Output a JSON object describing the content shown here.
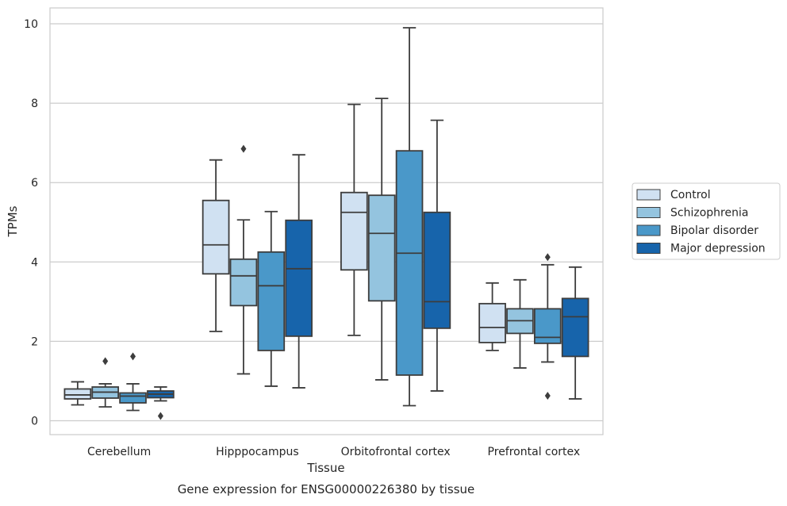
{
  "caption": "Gene expression for ENSG00000226380 by tissue",
  "chart_data": {
    "type": "box",
    "xlabel": "Tissue",
    "ylabel": "TPMs",
    "ylim": [
      -0.35,
      10.4
    ],
    "yticks": [
      0,
      2,
      4,
      6,
      8,
      10
    ],
    "grid": "horizontal",
    "legend_placement": "right",
    "categories": [
      "Cerebellum",
      "Hipppocampus",
      "Orbitofrontal cortex",
      "Prefrontal cortex"
    ],
    "series": [
      {
        "name": "Control",
        "color": "#d0e1f2",
        "boxes": [
          {
            "whislo": 0.4,
            "q1": 0.55,
            "med": 0.65,
            "q3": 0.8,
            "whishi": 0.98,
            "fliers": []
          },
          {
            "whislo": 2.25,
            "q1": 3.7,
            "med": 4.43,
            "q3": 5.55,
            "whishi": 6.57,
            "fliers": []
          },
          {
            "whislo": 2.15,
            "q1": 3.8,
            "med": 5.25,
            "q3": 5.75,
            "whishi": 7.97,
            "fliers": []
          },
          {
            "whislo": 1.77,
            "q1": 1.97,
            "med": 2.35,
            "q3": 2.95,
            "whishi": 3.47,
            "fliers": []
          }
        ]
      },
      {
        "name": "Schizophrenia",
        "color": "#94c4df",
        "boxes": [
          {
            "whislo": 0.35,
            "q1": 0.57,
            "med": 0.72,
            "q3": 0.85,
            "whishi": 0.93,
            "fliers": [
              1.5
            ]
          },
          {
            "whislo": 1.18,
            "q1": 2.9,
            "med": 3.65,
            "q3": 4.07,
            "whishi": 5.06,
            "fliers": [
              6.85
            ]
          },
          {
            "whislo": 1.03,
            "q1": 3.02,
            "med": 4.72,
            "q3": 5.68,
            "whishi": 8.12,
            "fliers": []
          },
          {
            "whislo": 1.33,
            "q1": 2.2,
            "med": 2.52,
            "q3": 2.82,
            "whishi": 3.55,
            "fliers": []
          }
        ]
      },
      {
        "name": "Bipolar disorder",
        "color": "#4a98c9",
        "boxes": [
          {
            "whislo": 0.26,
            "q1": 0.45,
            "med": 0.62,
            "q3": 0.7,
            "whishi": 0.93,
            "fliers": [
              1.62
            ]
          },
          {
            "whislo": 0.87,
            "q1": 1.77,
            "med": 3.4,
            "q3": 4.25,
            "whishi": 5.27,
            "fliers": []
          },
          {
            "whislo": 0.38,
            "q1": 1.15,
            "med": 4.22,
            "q3": 6.8,
            "whishi": 9.9,
            "fliers": []
          },
          {
            "whislo": 1.48,
            "q1": 1.95,
            "med": 2.1,
            "q3": 2.82,
            "whishi": 3.93,
            "fliers": [
              0.63,
              4.12
            ]
          }
        ]
      },
      {
        "name": "Major depression",
        "color": "#1764ab",
        "boxes": [
          {
            "whislo": 0.5,
            "q1": 0.58,
            "med": 0.67,
            "q3": 0.75,
            "whishi": 0.85,
            "fliers": [
              0.12
            ]
          },
          {
            "whislo": 0.83,
            "q1": 2.13,
            "med": 3.83,
            "q3": 5.05,
            "whishi": 6.7,
            "fliers": []
          },
          {
            "whislo": 0.75,
            "q1": 2.33,
            "med": 3.0,
            "q3": 5.25,
            "whishi": 7.57,
            "fliers": []
          },
          {
            "whislo": 0.55,
            "q1": 1.62,
            "med": 2.62,
            "q3": 3.08,
            "whishi": 3.87,
            "fliers": []
          }
        ]
      }
    ]
  }
}
